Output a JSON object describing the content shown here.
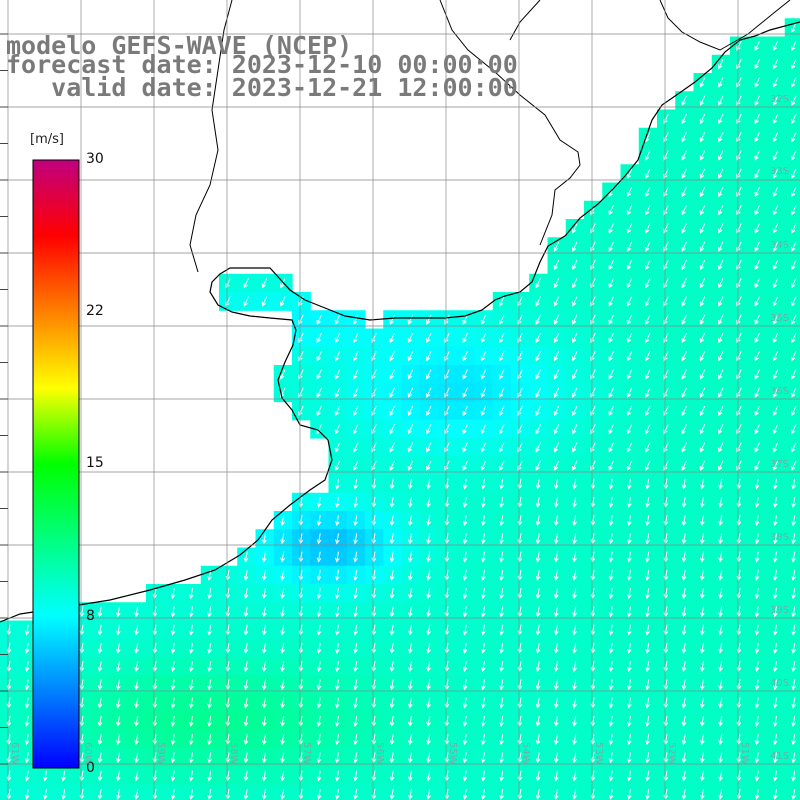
{
  "title": {
    "line1": "modelo GEFS-WAVE (NCEP)",
    "line2": "forecast date: 2023-12-10 00:00:00",
    "line3": "   valid date: 2023-12-21 12:00:00"
  },
  "colorbar": {
    "unit": "[m/s]",
    "min": 0,
    "max": 30,
    "ticks": [
      "30",
      "22",
      "15",
      "8",
      "0"
    ],
    "colors": [
      "#0000ff",
      "#0080ff",
      "#00ffff",
      "#00ff80",
      "#00ff00",
      "#ffff00",
      "#ff8000",
      "#ff0000",
      "#c0007f"
    ]
  },
  "lat_labels": [
    "32S",
    "33S",
    "34S",
    "35S",
    "36S",
    "37S",
    "38S",
    "39S",
    "40S",
    "41S"
  ],
  "lon_labels": [
    "61W",
    "60W",
    "59W",
    "58W",
    "57W",
    "56W",
    "55W",
    "54W",
    "53W",
    "52W",
    "51W"
  ],
  "colors": {
    "land": "#ffffff",
    "coast": "#000000",
    "grid": "#888888",
    "arrow": "#ffffff",
    "title": "#7a7a7a"
  }
}
